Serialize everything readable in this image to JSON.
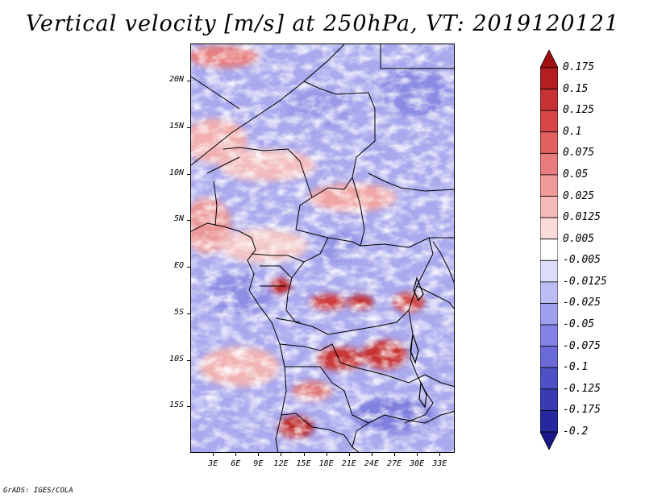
{
  "title": "Vertical velocity [m/s] at 250hPa, VT: 2019120121",
  "map": {
    "variable": "Vertical velocity",
    "units": "m/s",
    "level": "250hPa",
    "valid_time": "2019120121",
    "lon_range": [
      0,
      35
    ],
    "lat_range": [
      -20,
      24
    ],
    "lat_ticks": [
      {
        "value": 20,
        "label": "20N"
      },
      {
        "value": 15,
        "label": "15N"
      },
      {
        "value": 10,
        "label": "10N"
      },
      {
        "value": 5,
        "label": "5N"
      },
      {
        "value": 0,
        "label": "EQ"
      },
      {
        "value": -5,
        "label": "5S"
      },
      {
        "value": -10,
        "label": "10S"
      },
      {
        "value": -15,
        "label": "15S"
      }
    ],
    "lon_ticks": [
      {
        "value": 3,
        "label": "3E"
      },
      {
        "value": 6,
        "label": "6E"
      },
      {
        "value": 9,
        "label": "9E"
      },
      {
        "value": 12,
        "label": "12E"
      },
      {
        "value": 15,
        "label": "15E"
      },
      {
        "value": 18,
        "label": "18E"
      },
      {
        "value": 21,
        "label": "21E"
      },
      {
        "value": 24,
        "label": "24E"
      },
      {
        "value": 27,
        "label": "27E"
      },
      {
        "value": 30,
        "label": "30E"
      },
      {
        "value": 33,
        "label": "33E"
      }
    ]
  },
  "colorbar": {
    "labels": [
      "0.175",
      "0.15",
      "0.125",
      "0.1",
      "0.075",
      "0.05",
      "0.025",
      "0.0125",
      "0.005",
      "-0.005",
      "-0.0125",
      "-0.025",
      "-0.05",
      "-0.075",
      "-0.1",
      "-0.125",
      "-0.175",
      "-0.2"
    ],
    "colors": [
      "#a01010",
      "#b41e1e",
      "#c83232",
      "#d64646",
      "#e06060",
      "#e87c7c",
      "#f09a9a",
      "#f6baba",
      "#fbdada",
      "#ffffff",
      "#dcdcfb",
      "#bdbdf6",
      "#9f9ff0",
      "#8484e6",
      "#6a6ad8",
      "#5050c6",
      "#3a3ab2",
      "#28289e",
      "#18188a"
    ]
  },
  "footer": "GrADS: IGES/COLA"
}
